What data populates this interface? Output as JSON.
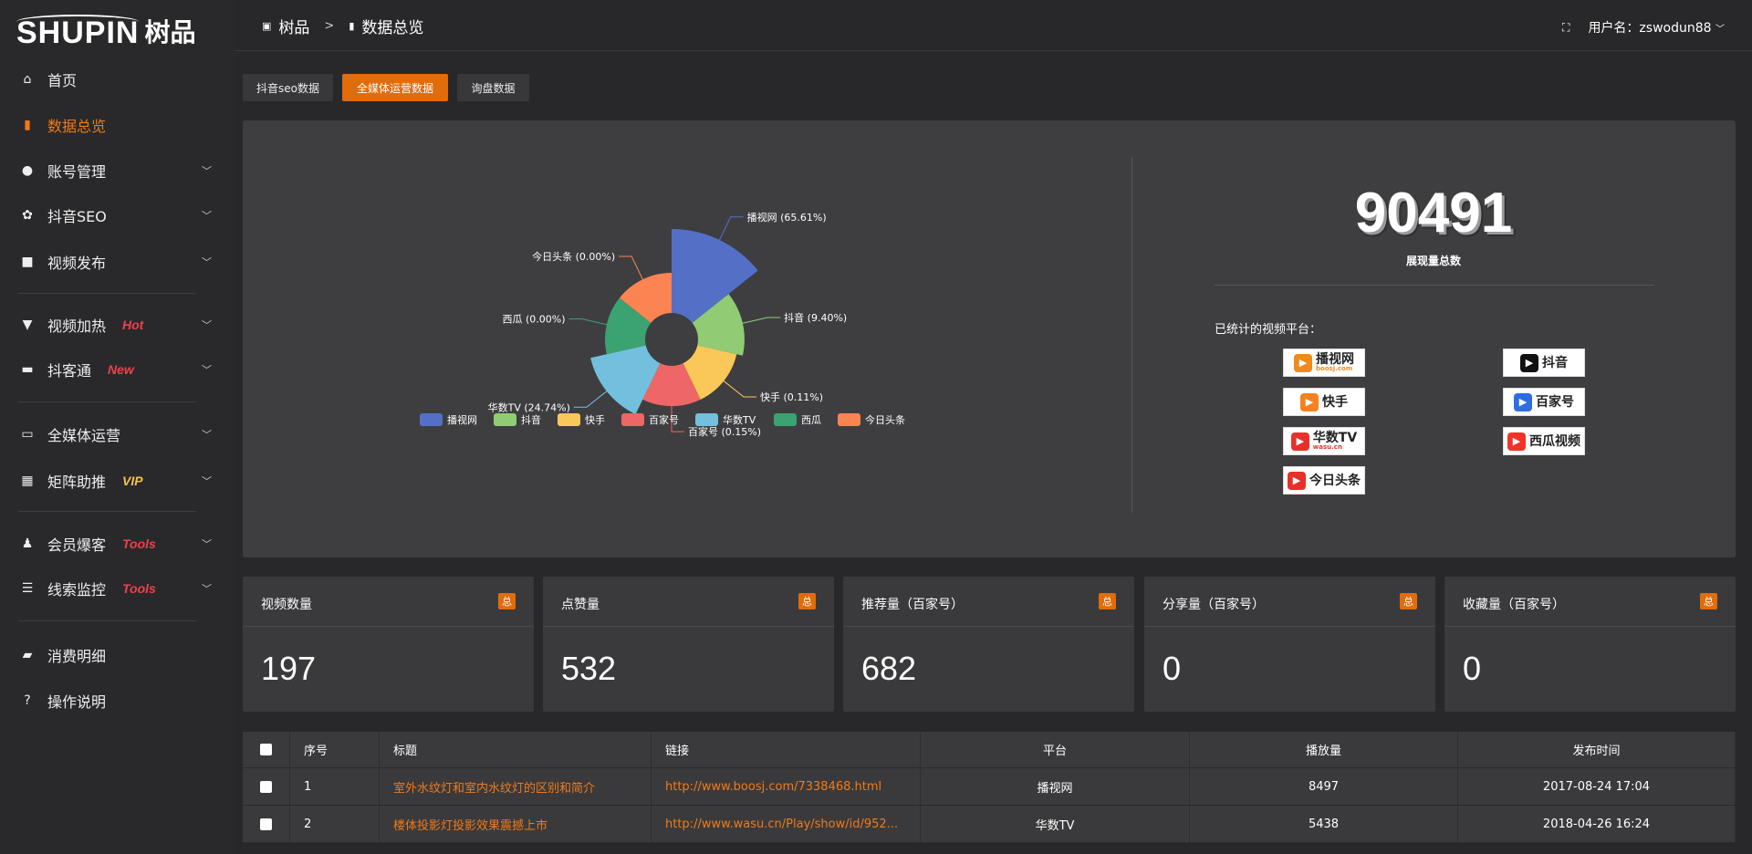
{
  "logo": {
    "en": "SHUPIN",
    "cn": "树品"
  },
  "sidebar": {
    "items": [
      {
        "label": "首页",
        "icon": "home-icon"
      },
      {
        "label": "数据总览",
        "icon": "bar-chart-icon",
        "active": true
      },
      {
        "label": "账号管理",
        "icon": "user-icon",
        "chevron": true
      },
      {
        "label": "抖音SEO",
        "icon": "gear-icon",
        "chevron": true
      },
      {
        "label": "视频发布",
        "icon": "camera-icon",
        "chevron": true
      },
      {
        "label": "视频加热",
        "icon": "flame-board-icon",
        "chevron": true,
        "tag": "Hot",
        "tag_color": "#f0404a"
      },
      {
        "label": "抖客通",
        "icon": "chat-icon",
        "chevron": true,
        "tag": "New",
        "tag_color": "#f0404a"
      },
      {
        "label": "全媒体运营",
        "icon": "monitor-icon",
        "chevron": true
      },
      {
        "label": "矩阵助推",
        "icon": "grid-icon",
        "chevron": true,
        "tag": "VIP",
        "tag_color": "#f5c342"
      },
      {
        "label": "会员爆客",
        "icon": "member-icon",
        "chevron": true,
        "tag": "Tools",
        "tag_color": "#f0404a"
      },
      {
        "label": "线索监控",
        "icon": "sliders-icon",
        "chevron": true,
        "tag": "Tools",
        "tag_color": "#f0404a"
      },
      {
        "label": "消费明细",
        "icon": "wallet-icon"
      },
      {
        "label": "操作说明",
        "icon": "help-icon"
      }
    ]
  },
  "header": {
    "crumb_root": "树品",
    "crumb_current": "数据总览",
    "username": "用户名：zswodun88"
  },
  "tabs": [
    "抖音seo数据",
    "全媒体运营数据",
    "询盘数据"
  ],
  "summary": {
    "total": "90491",
    "total_label": "展现量总数",
    "platforms_title": "已统计的视频平台：",
    "platform_logos": [
      {
        "name": "播视网",
        "sub": "boosj.com",
        "color": "#f08a1c"
      },
      {
        "name": "抖音",
        "color": "#111"
      },
      {
        "name": "快手",
        "color": "#f5821f"
      },
      {
        "name": "百家号",
        "color": "#2f6ee0"
      },
      {
        "name": "华数TV",
        "sub": "wasu.cn",
        "color": "#e8302a"
      },
      {
        "name": "西瓜视频",
        "color": "#f2332a"
      },
      {
        "name": "今日头条",
        "color": "#e8302a"
      }
    ]
  },
  "chart_data": {
    "type": "pie",
    "rose": true,
    "categories": [
      "播视网",
      "抖音",
      "快手",
      "百家号",
      "华数TV",
      "西瓜",
      "今日头条"
    ],
    "values": [
      65.61,
      9.4,
      0.11,
      0.15,
      24.74,
      0.0,
      0.0
    ],
    "labels": [
      "播视网 (65.61%)",
      "抖音 (9.40%)",
      "快手 (0.11%)",
      "百家号 (0.15%)",
      "华数TV (24.74%)",
      "西瓜 (0.00%)",
      "今日头条 (0.00%)"
    ],
    "colors": [
      "#5470c6",
      "#91cc75",
      "#fac858",
      "#ee6666",
      "#73c0de",
      "#3ba272",
      "#fc8452"
    ],
    "legend": "bottom"
  },
  "cards": [
    {
      "title": "视频数量",
      "badge": "总",
      "value": "197"
    },
    {
      "title": "点赞量",
      "badge": "总",
      "value": "532"
    },
    {
      "title": "推荐量（百家号）",
      "badge": "总",
      "value": "682"
    },
    {
      "title": "分享量（百家号）",
      "badge": "总",
      "value": "0"
    },
    {
      "title": "收藏量（百家号）",
      "badge": "总",
      "value": "0"
    }
  ],
  "table": {
    "headers": [
      "序号",
      "标题",
      "链接",
      "平台",
      "播放量",
      "发布时间"
    ],
    "rows": [
      [
        "1",
        "室外水纹灯和室内水纹灯的区别和简介",
        "http://www.boosj.com/7338468.html",
        "播视网",
        "8497",
        "2017-08-24 17:04"
      ],
      [
        "2",
        "楼体投影灯投影效果震撼上市",
        "http://www.wasu.cn/Play/show/id/952...",
        "华数TV",
        "5438",
        "2018-04-26 16:24"
      ]
    ]
  }
}
